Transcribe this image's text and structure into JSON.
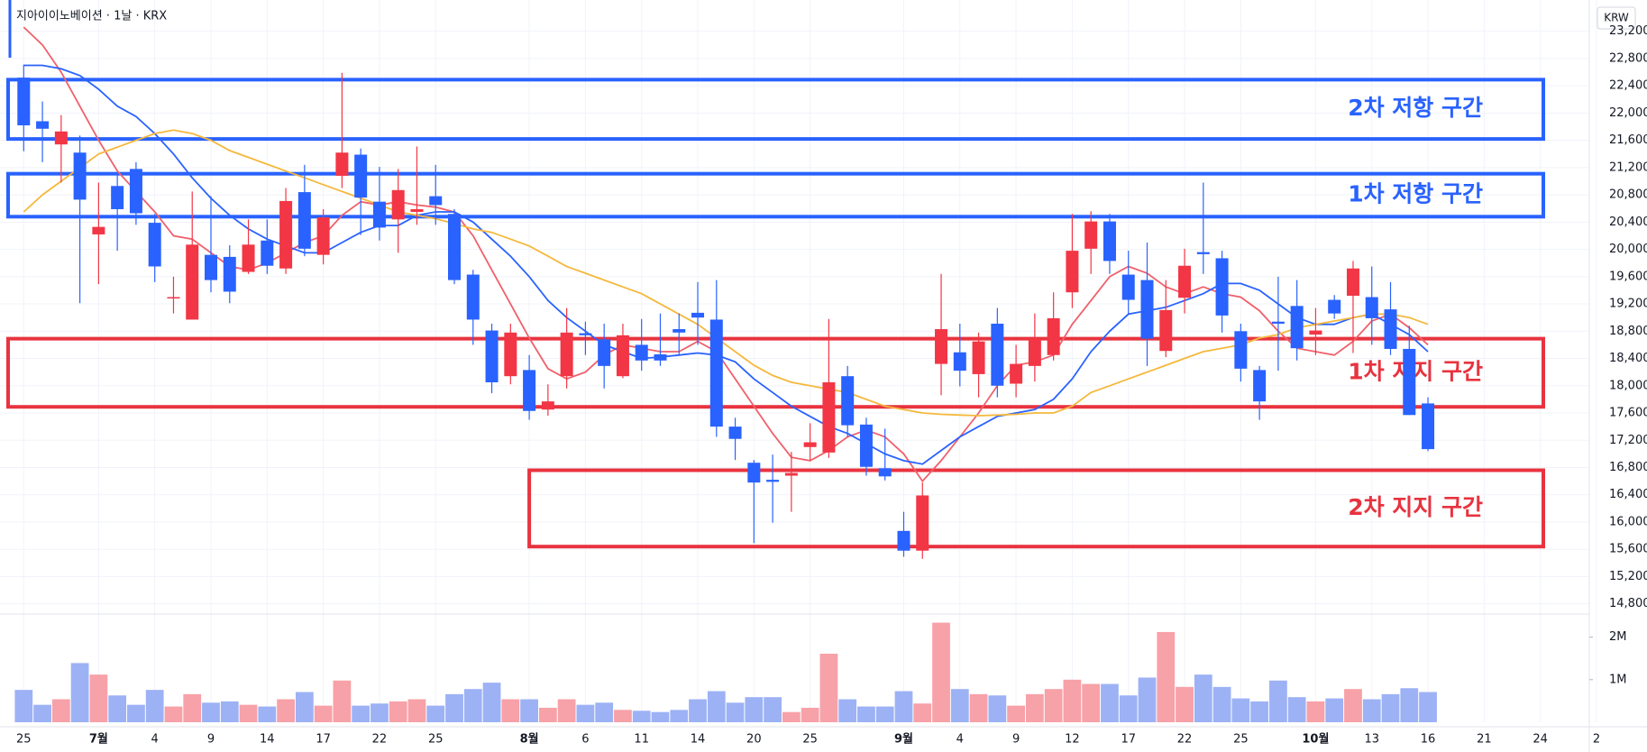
{
  "chart_data": {
    "type": "candlestick",
    "title": "지아이이노베이션 · 1날 · KRX",
    "currency": "KRW",
    "categories": [
      "25",
      null,
      null,
      null,
      "7월",
      null,
      null,
      "4",
      null,
      null,
      "9",
      null,
      null,
      "14",
      null,
      null,
      "17",
      null,
      null,
      "22",
      null,
      null,
      "25",
      null,
      null,
      null,
      null,
      "8월",
      null,
      null,
      "6",
      null,
      null,
      "11",
      null,
      null,
      "14",
      null,
      null,
      "20",
      null,
      null,
      "25",
      null,
      null,
      null,
      null,
      "9월",
      null,
      null,
      "4",
      null,
      null,
      "9",
      null,
      null,
      "12",
      null,
      null,
      "17",
      null,
      null,
      "22",
      null,
      null,
      "25",
      null,
      null,
      null,
      "10월",
      null,
      null,
      "13",
      null,
      null,
      "16"
    ],
    "future_categories": [
      "21",
      "24",
      "2"
    ],
    "open": [
      22520,
      21880,
      21540,
      21420,
      20220,
      20930,
      21180,
      20390,
      19280,
      18970,
      19920,
      19890,
      19670,
      20130,
      19720,
      20840,
      19920,
      21080,
      21390,
      20700,
      20440,
      20550,
      20780,
      20520,
      19630,
      18810,
      18140,
      18230,
      17650,
      18140,
      18770,
      18680,
      18140,
      18600,
      18460,
      18830,
      19070,
      18970,
      17400,
      16870,
      16620,
      16680,
      17100,
      17020,
      18140,
      17430,
      16790,
      15870,
      15580,
      18320,
      18490,
      18170,
      18910,
      18030,
      18290,
      18450,
      19370,
      20010,
      20410,
      19630,
      19550,
      18510,
      19290,
      19960,
      19870,
      18800,
      18230,
      18940,
      19170,
      18750,
      19260,
      19320,
      19300,
      19120,
      18540,
      17740
    ],
    "high": [
      22710,
      22170,
      21970,
      21670,
      20980,
      21130,
      21280,
      20520,
      19600,
      20850,
      20780,
      20060,
      20440,
      20440,
      20900,
      21240,
      20590,
      22590,
      21480,
      21210,
      21180,
      21510,
      21240,
      20590,
      19700,
      18910,
      18910,
      18450,
      18020,
      19140,
      18940,
      18910,
      18910,
      18980,
      19060,
      19060,
      19520,
      19550,
      17530,
      16910,
      16990,
      17030,
      17450,
      18980,
      18290,
      17530,
      17370,
      16150,
      16580,
      19640,
      18910,
      18780,
      19140,
      18600,
      19060,
      19370,
      20520,
      20560,
      20520,
      19980,
      20100,
      19550,
      20010,
      20980,
      19980,
      18910,
      18290,
      19600,
      19550,
      19140,
      19330,
      19830,
      19750,
      19520,
      18880,
      17830
    ],
    "low": [
      21440,
      21280,
      20980,
      19210,
      19490,
      19980,
      20360,
      19520,
      19060,
      18970,
      19370,
      19210,
      19640,
      19640,
      19640,
      19900,
      19780,
      20900,
      20210,
      20130,
      19950,
      20360,
      20360,
      19490,
      18600,
      17890,
      18020,
      17500,
      17560,
      17960,
      18450,
      17960,
      18110,
      18220,
      18290,
      18450,
      18600,
      17250,
      16910,
      15690,
      15990,
      16150,
      16910,
      16940,
      17250,
      16680,
      16610,
      15490,
      15460,
      17860,
      17990,
      17830,
      17830,
      17830,
      18060,
      18370,
      19140,
      19640,
      19640,
      19060,
      18290,
      18420,
      19060,
      19640,
      18780,
      18060,
      17500,
      18220,
      18370,
      18450,
      18980,
      18480,
      18600,
      18450,
      17570,
      17040
    ],
    "close": [
      21820,
      21770,
      21730,
      20730,
      20330,
      20590,
      20530,
      19750,
      19300,
      20070,
      19550,
      19380,
      20070,
      19760,
      20710,
      20010,
      20470,
      21420,
      20760,
      20320,
      20870,
      20590,
      20650,
      19550,
      18970,
      18050,
      18780,
      17630,
      17770,
      18780,
      18740,
      18290,
      18740,
      18370,
      18370,
      18780,
      19000,
      17400,
      17220,
      16580,
      16590,
      16720,
      17170,
      18050,
      17420,
      16810,
      16670,
      15580,
      16390,
      18830,
      18220,
      18650,
      18000,
      18320,
      18690,
      18990,
      19980,
      20410,
      19830,
      19260,
      18690,
      19110,
      19760,
      19930,
      19030,
      18250,
      17770,
      18910,
      18550,
      18810,
      19060,
      19720,
      18990,
      18540,
      17570,
      17070
    ],
    "up_color": "#f23645",
    "down_color": "#2962ff",
    "ylim": [
      14690,
      23500
    ],
    "yticks": [
      {
        "value": 23200,
        "label": "23,200"
      },
      {
        "value": 22800,
        "label": "22,800"
      },
      {
        "value": 22400,
        "label": "22,400"
      },
      {
        "value": 22000,
        "label": "22,000"
      },
      {
        "value": 21600,
        "label": "21,600"
      },
      {
        "value": 21200,
        "label": "21,200"
      },
      {
        "value": 20800,
        "label": "20,800"
      },
      {
        "value": 20400,
        "label": "20,400"
      },
      {
        "value": 20000,
        "label": "20,000"
      },
      {
        "value": 19600,
        "label": "19,600"
      },
      {
        "value": 19200,
        "label": "19,200"
      },
      {
        "value": 18800,
        "label": "18,800"
      },
      {
        "value": 18400,
        "label": "18,400"
      },
      {
        "value": 18000,
        "label": "18,000"
      },
      {
        "value": 17600,
        "label": "17,600"
      },
      {
        "value": 17200,
        "label": "17,200"
      },
      {
        "value": 16800,
        "label": "16,800"
      },
      {
        "value": 16400,
        "label": "16,400"
      },
      {
        "value": 16000,
        "label": "16,000"
      },
      {
        "value": 15600,
        "label": "15,600"
      },
      {
        "value": 15200,
        "label": "15,200"
      },
      {
        "value": 14800,
        "label": "14,800"
      }
    ],
    "grid": true,
    "moving_averages": [
      {
        "color": "#f0606b",
        "values": [
          23260,
          23000,
          22600,
          22100,
          21600,
          21150,
          20850,
          20550,
          20200,
          20150,
          19950,
          19750,
          19700,
          19800,
          19950,
          20100,
          20200,
          20500,
          20700,
          20650,
          20700,
          20650,
          20620,
          20550,
          20200,
          19700,
          19200,
          18700,
          18250,
          18100,
          18200,
          18450,
          18600,
          18550,
          18500,
          18500,
          18650,
          18500,
          18100,
          17700,
          17300,
          16950,
          16900,
          17050,
          17250,
          17350,
          17250,
          17000,
          16600,
          16900,
          17250,
          17600,
          18000,
          18300,
          18350,
          18450,
          18900,
          19250,
          19600,
          19750,
          19650,
          19450,
          19350,
          19450,
          19350,
          19300,
          19100,
          18800,
          18550,
          18500,
          18450,
          18650,
          18950,
          19050,
          18850,
          18600
        ]
      },
      {
        "color": "#2962ff",
        "values": [
          22700,
          22700,
          22650,
          22550,
          22350,
          22100,
          21950,
          21700,
          21400,
          21050,
          20750,
          20500,
          20300,
          20150,
          20050,
          19950,
          19950,
          20100,
          20250,
          20350,
          20350,
          20500,
          20550,
          20550,
          20400,
          20150,
          19900,
          19600,
          19250,
          19000,
          18800,
          18600,
          18500,
          18400,
          18420,
          18450,
          18480,
          18450,
          18350,
          18100,
          17900,
          17700,
          17550,
          17400,
          17300,
          17150,
          17000,
          16900,
          16850,
          17050,
          17250,
          17400,
          17550,
          17600,
          17650,
          17800,
          18100,
          18500,
          18800,
          19050,
          19100,
          19150,
          19250,
          19350,
          19500,
          19500,
          19400,
          19200,
          19000,
          18900,
          18900,
          19000,
          19050,
          18900,
          18750,
          18500
        ]
      },
      {
        "color": "#f5b83d",
        "values": [
          20550,
          20800,
          21000,
          21200,
          21400,
          21500,
          21600,
          21700,
          21750,
          21700,
          21600,
          21450,
          21350,
          21250,
          21150,
          21050,
          20950,
          20850,
          20750,
          20650,
          20550,
          20500,
          20450,
          20380,
          20300,
          20250,
          20150,
          20050,
          19900,
          19750,
          19650,
          19550,
          19450,
          19350,
          19200,
          19050,
          18900,
          18700,
          18500,
          18300,
          18150,
          18050,
          18000,
          17950,
          17900,
          17800,
          17700,
          17650,
          17600,
          17580,
          17570,
          17560,
          17570,
          17580,
          17600,
          17600,
          17700,
          17900,
          18000,
          18100,
          18200,
          18300,
          18400,
          18500,
          18550,
          18600,
          18700,
          18750,
          18850,
          18900,
          18950,
          19000,
          19050,
          19050,
          19000,
          18900
        ]
      }
    ],
    "zones": [
      {
        "label": "2차 저항 구간",
        "top": 22490,
        "bottom": 21620,
        "color": "#2962ff"
      },
      {
        "label": "1차 저항 구간",
        "top": 21110,
        "bottom": 20480,
        "color": "#2962ff"
      },
      {
        "label": "1차 지지 구간",
        "top": 18690,
        "bottom": 17690,
        "color": "#e8333f"
      },
      {
        "label": "2차 지지 구간",
        "top": 16760,
        "bottom": 15640,
        "color": "#e8333f",
        "start": "8월"
      }
    ],
    "volume": {
      "values": [
        760000,
        410000,
        540000,
        1390000,
        1120000,
        630000,
        410000,
        760000,
        370000,
        660000,
        460000,
        490000,
        410000,
        370000,
        540000,
        710000,
        390000,
        980000,
        390000,
        440000,
        490000,
        540000,
        390000,
        660000,
        780000,
        930000,
        540000,
        540000,
        340000,
        540000,
        410000,
        460000,
        290000,
        270000,
        240000,
        290000,
        540000,
        730000,
        460000,
        590000,
        590000,
        240000,
        340000,
        1610000,
        540000,
        370000,
        370000,
        730000,
        440000,
        2340000,
        780000,
        660000,
        630000,
        390000,
        660000,
        780000,
        1000000,
        900000,
        900000,
        630000,
        1050000,
        2120000,
        830000,
        1120000,
        830000,
        560000,
        490000,
        980000,
        590000,
        490000,
        560000,
        780000,
        540000,
        660000,
        800000,
        710000
      ],
      "ylim": [
        0,
        2500000
      ],
      "yticks": [
        {
          "value": 1000000,
          "label": "1M"
        },
        {
          "value": 2000000,
          "label": "2M"
        }
      ],
      "up_color": "#f7a1a8",
      "down_color": "#9db2f5"
    }
  }
}
